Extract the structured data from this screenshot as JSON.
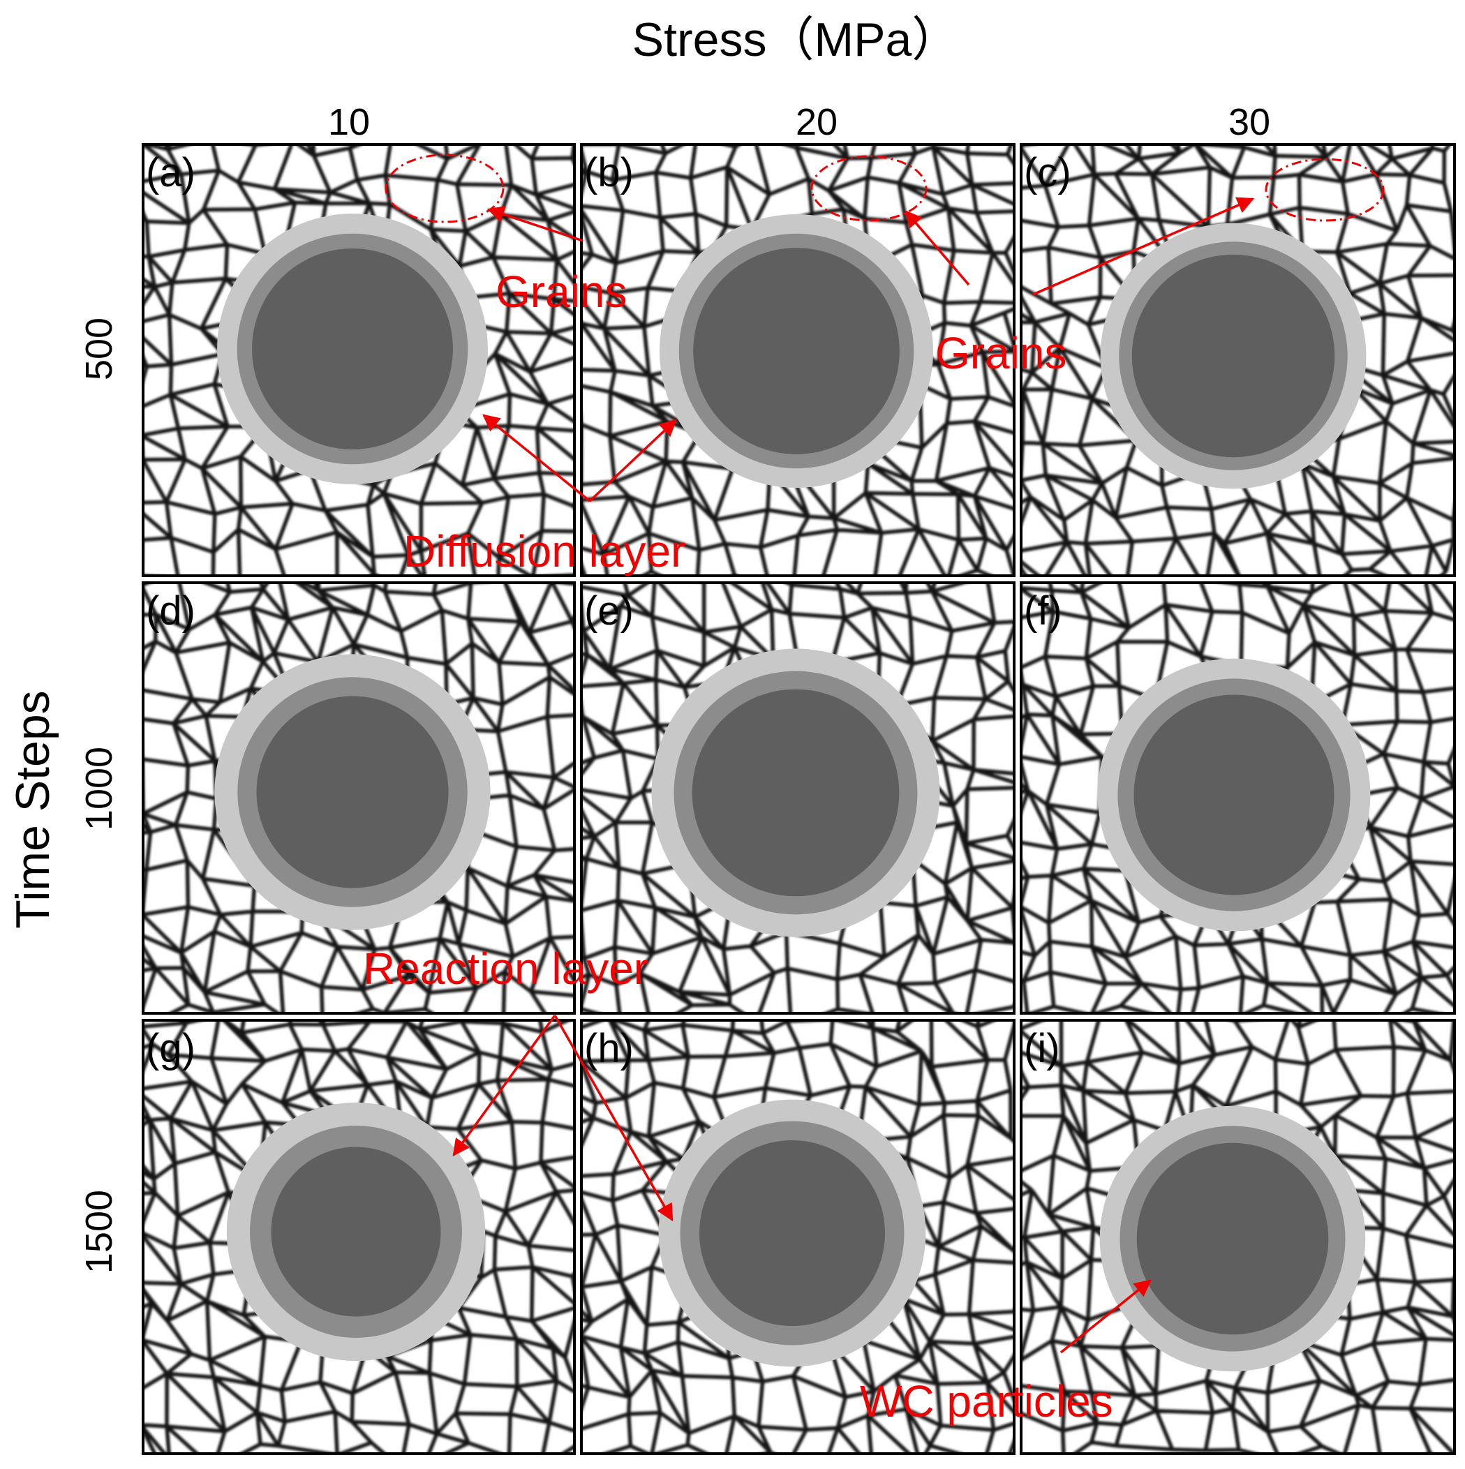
{
  "axes": {
    "x_title": "Stress（MPa）",
    "y_title": "Time Steps",
    "x_ticks": [
      "10",
      "20",
      "30"
    ],
    "y_ticks": [
      "500",
      "1000",
      "1500"
    ]
  },
  "panels": [
    {
      "label": "(a)",
      "stress": 10,
      "time_steps": 500,
      "diffusion_layer": 0.31,
      "reaction_layer": 0.19,
      "core": 0.9
    },
    {
      "label": "(b)",
      "stress": 20,
      "time_steps": 500,
      "diffusion_layer": 0.3,
      "reaction_layer": 0.18,
      "core": 0.92
    },
    {
      "label": "(c)",
      "stress": 30,
      "time_steps": 500,
      "diffusion_layer": 0.3,
      "reaction_layer": 0.17,
      "core": 0.94
    },
    {
      "label": "(d)",
      "stress": 10,
      "time_steps": 1000,
      "diffusion_layer": 0.34,
      "reaction_layer": 0.23,
      "core": 0.82
    },
    {
      "label": "(e)",
      "stress": 20,
      "time_steps": 1000,
      "diffusion_layer": 0.33,
      "reaction_layer": 0.22,
      "core": 0.88
    },
    {
      "label": "(f)",
      "stress": 30,
      "time_steps": 1000,
      "diffusion_layer": 0.32,
      "reaction_layer": 0.21,
      "core": 0.92
    },
    {
      "label": "(g)",
      "stress": 10,
      "time_steps": 1500,
      "diffusion_layer": 0.36,
      "reaction_layer": 0.27,
      "core": 0.76
    },
    {
      "label": "(h)",
      "stress": 20,
      "time_steps": 1500,
      "diffusion_layer": 0.33,
      "reaction_layer": 0.24,
      "core": 0.82
    },
    {
      "label": "(i)",
      "stress": 30,
      "time_steps": 1500,
      "diffusion_layer": 0.32,
      "reaction_layer": 0.22,
      "core": 0.88
    }
  ],
  "annotations": {
    "grains_1": "Grains",
    "grains_2": "Grains",
    "diffusion_layer": "Diffusion layer",
    "reaction_layer": "Reaction layer",
    "wc_particles": "WC particles"
  },
  "colors": {
    "annotation": "#f00000",
    "grain_boundary": "#141414",
    "grain_fill": "#ffffff",
    "diffusion_layer": "#c8c8c8",
    "reaction_layer": "#8c8c8c",
    "wc_core": "#5f5f5f"
  }
}
